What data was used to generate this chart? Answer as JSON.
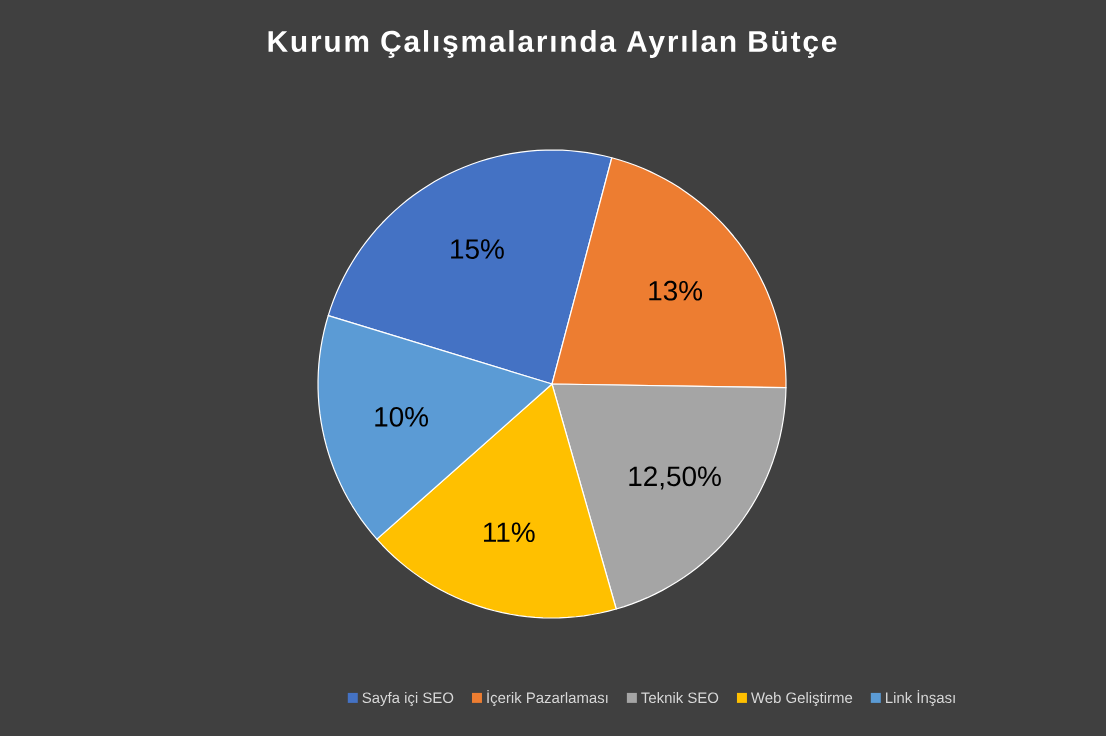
{
  "chart_data": {
    "type": "pie",
    "title": "Kurum Çalışmalarında Ayrılan Bütçe",
    "categories": [
      "Sayfa içi SEO",
      "İçerik Pazarlaması",
      "Teknik SEO",
      "Web Geliştirme",
      "Link İnşası"
    ],
    "values": [
      15,
      13,
      12.5,
      11,
      10
    ],
    "value_labels": [
      "15%",
      "13%",
      "12,50%",
      "11%",
      "10%"
    ],
    "colors": [
      "#4472c4",
      "#ed7d31",
      "#a5a5a5",
      "#ffc000",
      "#5b9bd5"
    ],
    "legend": "bottom"
  }
}
